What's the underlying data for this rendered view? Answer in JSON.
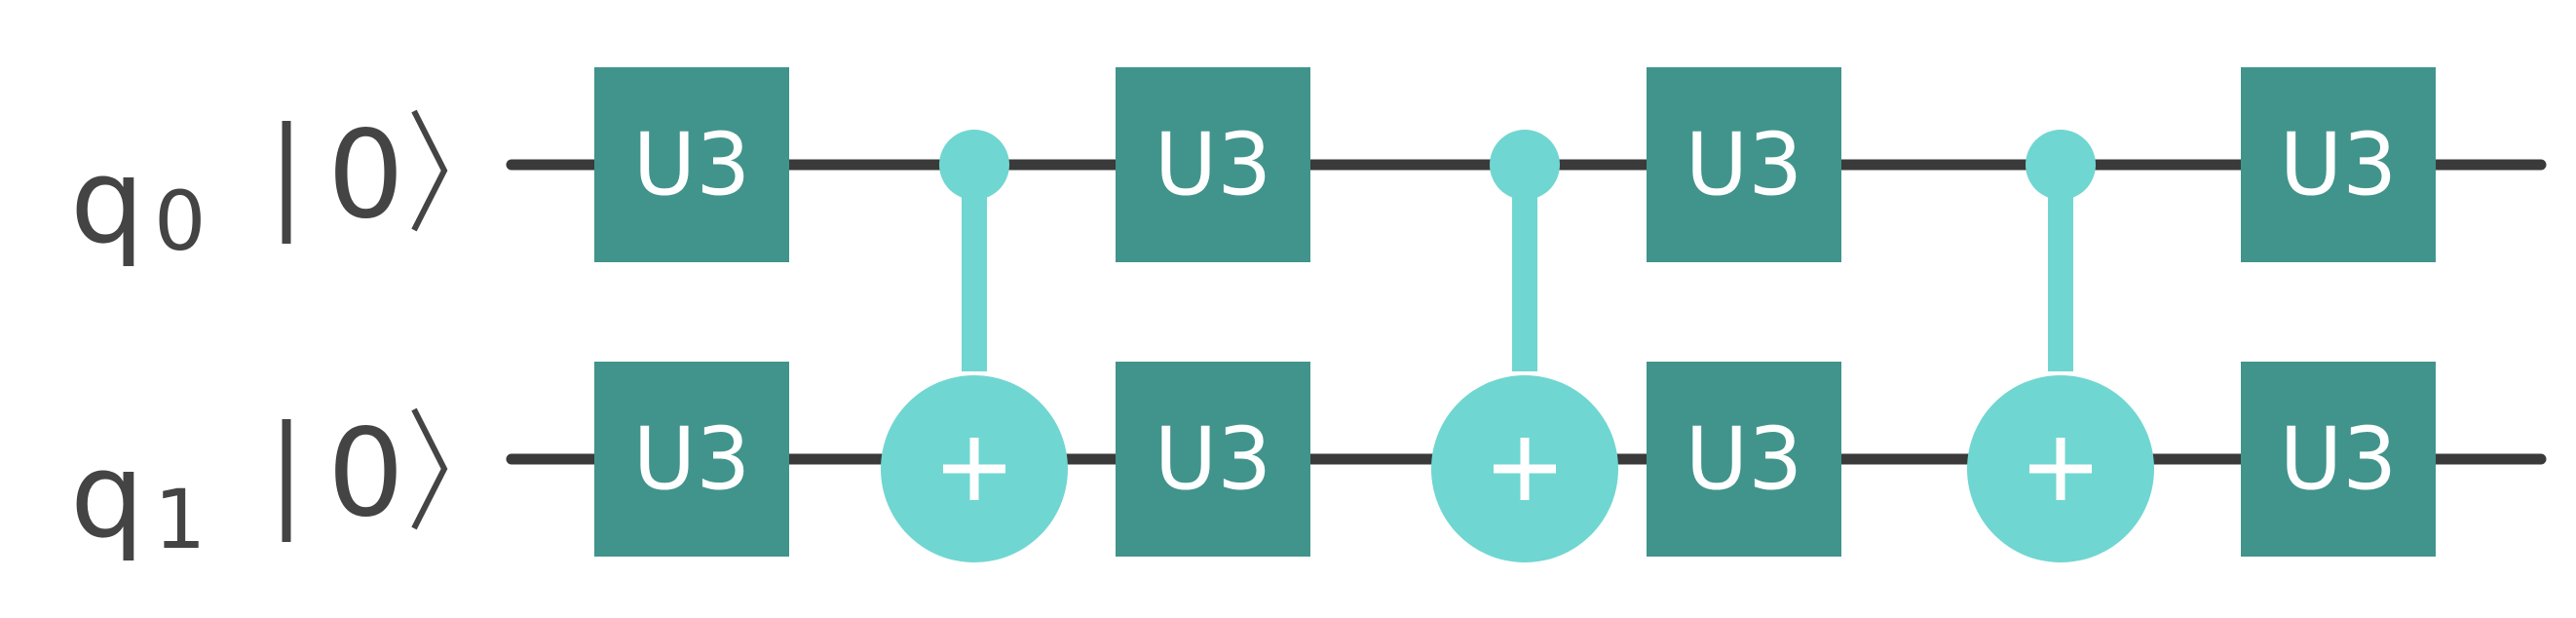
{
  "qubits": [
    {
      "name": "q",
      "index": "0",
      "ket": "0"
    },
    {
      "name": "q",
      "index": "1",
      "ket": "0"
    }
  ],
  "gates": [
    {
      "type": "U3",
      "label": "U3",
      "qubit": 0,
      "step": 0
    },
    {
      "type": "U3",
      "label": "U3",
      "qubit": 1,
      "step": 0
    },
    {
      "type": "CNOT",
      "control": 0,
      "target": 1,
      "step": 1
    },
    {
      "type": "U3",
      "label": "U3",
      "qubit": 0,
      "step": 2
    },
    {
      "type": "U3",
      "label": "U3",
      "qubit": 1,
      "step": 2
    },
    {
      "type": "CNOT",
      "control": 0,
      "target": 1,
      "step": 3
    },
    {
      "type": "U3",
      "label": "U3",
      "qubit": 0,
      "step": 4
    },
    {
      "type": "U3",
      "label": "U3",
      "qubit": 1,
      "step": 4
    },
    {
      "type": "CNOT",
      "control": 0,
      "target": 1,
      "step": 5
    },
    {
      "type": "U3",
      "label": "U3",
      "qubit": 0,
      "step": 6
    },
    {
      "type": "U3",
      "label": "U3",
      "qubit": 1,
      "step": 6
    }
  ],
  "colors": {
    "u3_gate": "#41948b",
    "cnot": "#70d6d1",
    "wire": "#3a3a3a",
    "label": "#444444"
  }
}
